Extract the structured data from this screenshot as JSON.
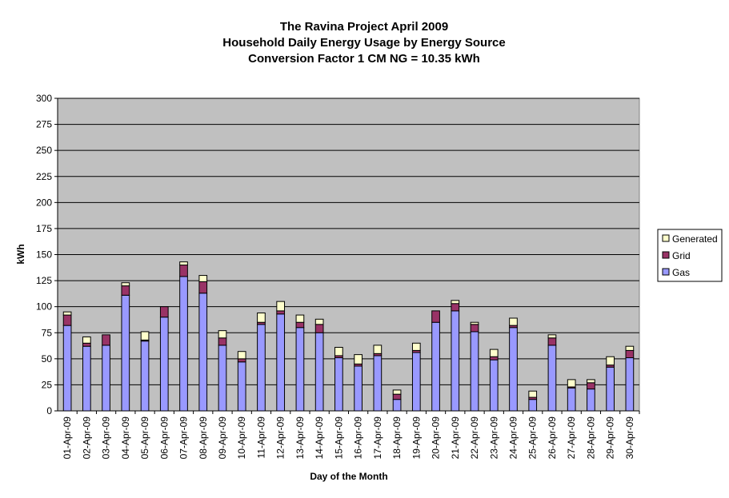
{
  "chart_data": {
    "type": "bar",
    "stacked": true,
    "title": [
      "The Ravina Project April 2009",
      "Household Daily Energy Usage by Energy Source",
      "Conversion Factor 1 CM NG = 10.35 kWh"
    ],
    "xlabel": "Day of the Month",
    "ylabel": "kWh",
    "ylim": [
      0,
      300
    ],
    "yticks": [
      0,
      25,
      50,
      75,
      100,
      125,
      150,
      175,
      200,
      225,
      250,
      275,
      300
    ],
    "grid": true,
    "legend_position": "right",
    "categories": [
      "01-Apr-09",
      "02-Apr-09",
      "03-Apr-09",
      "04-Apr-09",
      "05-Apr-09",
      "06-Apr-09",
      "07-Apr-09",
      "08-Apr-09",
      "09-Apr-09",
      "10-Apr-09",
      "11-Apr-09",
      "12-Apr-09",
      "13-Apr-09",
      "14-Apr-09",
      "15-Apr-09",
      "16-Apr-09",
      "17-Apr-09",
      "18-Apr-09",
      "19-Apr-09",
      "20-Apr-09",
      "21-Apr-09",
      "22-Apr-09",
      "23-Apr-09",
      "24-Apr-09",
      "25-Apr-09",
      "26-Apr-09",
      "27-Apr-09",
      "28-Apr-09",
      "29-Apr-09",
      "30-Apr-09"
    ],
    "series": [
      {
        "name": "Gas",
        "color": "#9999ff",
        "values": [
          82,
          62,
          63,
          111,
          67,
          90,
          129,
          113,
          63,
          47,
          83,
          93,
          80,
          75,
          51,
          43,
          53,
          11,
          56,
          85,
          96,
          76,
          49,
          80,
          11,
          63,
          22,
          21,
          42,
          51
        ]
      },
      {
        "name": "Grid",
        "color": "#993366",
        "values": [
          10,
          3,
          10,
          9,
          1,
          10,
          11,
          11,
          7,
          3,
          2,
          3,
          5,
          8,
          2,
          2,
          2,
          5,
          2,
          11,
          7,
          7,
          3,
          2,
          2,
          7,
          1,
          6,
          2,
          7
        ]
      },
      {
        "name": "Generated",
        "color": "#ffffcc",
        "values": [
          3,
          6,
          0,
          3,
          8,
          0,
          3,
          6,
          7,
          7,
          9,
          9,
          7,
          5,
          8,
          9,
          8,
          4,
          7,
          0,
          3,
          2,
          7,
          7,
          6,
          3,
          7,
          3,
          8,
          4
        ]
      }
    ],
    "colors": {
      "plot_background": "#c0c0c0",
      "gridline": "#000000"
    }
  }
}
